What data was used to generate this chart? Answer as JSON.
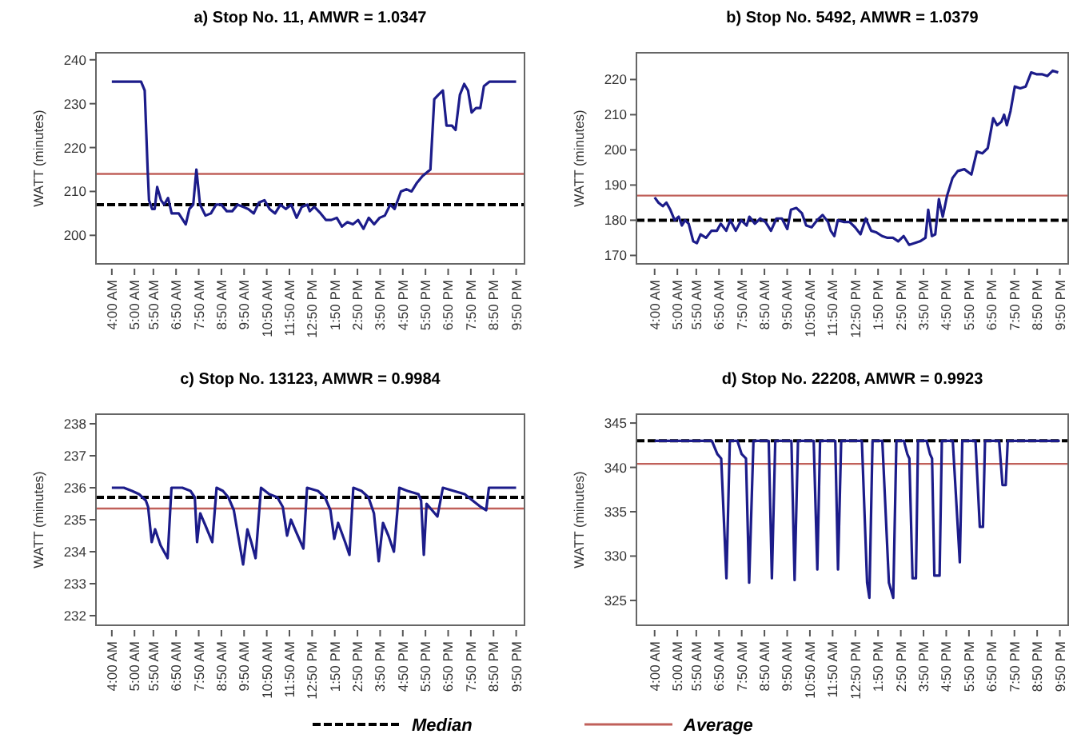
{
  "chart_data": [
    {
      "type": "line",
      "title": "a) Stop No. 11, AMWR = 1.0347",
      "ylabel": "WATT (minutes)",
      "xlim": [
        3.3,
        22.2
      ],
      "xticks": [
        {
          "value": 4,
          "label": "4:00 AM"
        },
        {
          "value": 5,
          "label": "5:00 AM"
        },
        {
          "value": 5.833,
          "label": "5:50 AM"
        },
        {
          "value": 6.833,
          "label": "6:50 AM"
        },
        {
          "value": 7.833,
          "label": "7:50 AM"
        },
        {
          "value": 8.833,
          "label": "8:50 AM"
        },
        {
          "value": 9.833,
          "label": "9:50 AM"
        },
        {
          "value": 10.833,
          "label": "10:50 AM"
        },
        {
          "value": 11.833,
          "label": "11:50 AM"
        },
        {
          "value": 12.833,
          "label": "12:50 PM"
        },
        {
          "value": 13.833,
          "label": "1:50 PM"
        },
        {
          "value": 14.833,
          "label": "2:50 PM"
        },
        {
          "value": 15.833,
          "label": "3:50 PM"
        },
        {
          "value": 16.833,
          "label": "4:50 PM"
        },
        {
          "value": 17.833,
          "label": "5:50 PM"
        },
        {
          "value": 18.833,
          "label": "6:50 PM"
        },
        {
          "value": 19.833,
          "label": "7:50 PM"
        },
        {
          "value": 20.833,
          "label": "8:50 PM"
        },
        {
          "value": 21.833,
          "label": "9:50 PM"
        }
      ],
      "ylim": [
        193.5,
        241.6
      ],
      "yticks": [
        200,
        210,
        220,
        230,
        240
      ],
      "series": [
        {
          "color": "#1c1c8a",
          "x": [
            4,
            4.87,
            5.29,
            5.45,
            5.58,
            5.64,
            5.78,
            5.89,
            6.0,
            6.17,
            6.31,
            6.48,
            6.64,
            6.95,
            7.26,
            7.42,
            7.59,
            7.73,
            7.89,
            8.13,
            8.37,
            8.6,
            8.83,
            9.07,
            9.31,
            9.55,
            9.78,
            10.02,
            10.26,
            10.49,
            10.73,
            10.96,
            11.2,
            11.44,
            11.67,
            11.91,
            12.15,
            12.38,
            12.62,
            12.73,
            12.93,
            13.21,
            13.44,
            13.68,
            13.92,
            14.15,
            14.39,
            14.63,
            14.86,
            15.1,
            15.33,
            15.57,
            15.81,
            16.04,
            16.28,
            16.47,
            16.75,
            16.99,
            17.22,
            17.46,
            17.7,
            18.05,
            18.22,
            18.4,
            18.6,
            18.76,
            19.0,
            19.16,
            19.35,
            19.54,
            19.71,
            19.87,
            20.06,
            20.25,
            20.41,
            20.65,
            21.83
          ],
          "values": [
            235,
            235,
            235,
            233,
            215,
            208,
            206,
            206,
            211,
            208,
            207,
            208.5,
            205,
            205,
            202.5,
            206,
            207,
            215,
            207,
            204.5,
            205,
            207,
            207,
            205.5,
            205.5,
            207,
            206.5,
            206,
            205,
            207.5,
            208,
            206,
            205,
            207,
            206,
            207,
            204,
            206.5,
            207,
            205.5,
            206.5,
            205,
            203.5,
            203.5,
            204,
            202,
            203,
            202.5,
            203.5,
            201.5,
            204,
            202.5,
            204,
            204.5,
            207,
            206,
            210,
            210.5,
            210,
            212,
            213.5,
            215,
            231,
            232,
            233,
            225,
            225,
            224,
            232,
            234.5,
            233,
            228,
            229,
            229,
            234,
            235,
            235
          ]
        }
      ],
      "ref_lines": [
        {
          "axis": "y",
          "value": 207,
          "color": "#000000",
          "line_style": "dashed"
        },
        {
          "axis": "y",
          "value": 214,
          "color": "#c0605a",
          "line_style": "solid"
        }
      ]
    },
    {
      "type": "line",
      "title": "b) Stop No. 5492, AMWR = 1.0379",
      "ylabel": "WATT (minutes)",
      "xlim": [
        3.2,
        22.2
      ],
      "xticks": [
        {
          "value": 4,
          "label": "4:00 AM"
        },
        {
          "value": 5,
          "label": "5:00 AM"
        },
        {
          "value": 5.833,
          "label": "5:50 AM"
        },
        {
          "value": 6.833,
          "label": "6:50 AM"
        },
        {
          "value": 7.833,
          "label": "7:50 AM"
        },
        {
          "value": 8.833,
          "label": "8:50 AM"
        },
        {
          "value": 9.833,
          "label": "9:50 AM"
        },
        {
          "value": 10.833,
          "label": "10:50 AM"
        },
        {
          "value": 11.833,
          "label": "11:50 AM"
        },
        {
          "value": 12.833,
          "label": "12:50 PM"
        },
        {
          "value": 13.833,
          "label": "1:50 PM"
        },
        {
          "value": 14.833,
          "label": "2:50 PM"
        },
        {
          "value": 15.833,
          "label": "3:50 PM"
        },
        {
          "value": 16.833,
          "label": "4:50 PM"
        },
        {
          "value": 17.833,
          "label": "5:50 PM"
        },
        {
          "value": 18.833,
          "label": "6:50 PM"
        },
        {
          "value": 19.833,
          "label": "7:50 PM"
        },
        {
          "value": 20.833,
          "label": "8:50 PM"
        },
        {
          "value": 21.833,
          "label": "9:50 PM"
        }
      ],
      "ylim": [
        167.6,
        227.6
      ],
      "yticks": [
        170,
        180,
        190,
        200,
        210,
        220
      ],
      "series": [
        {
          "color": "#1c1c8a",
          "x": [
            4,
            4.17,
            4.36,
            4.52,
            4.69,
            4.88,
            5.06,
            5.2,
            5.34,
            5.5,
            5.7,
            5.86,
            6.02,
            6.26,
            6.5,
            6.74,
            6.91,
            7.15,
            7.33,
            7.57,
            7.81,
            8.05,
            8.17,
            8.41,
            8.65,
            8.88,
            9.12,
            9.36,
            9.6,
            9.84,
            10.0,
            10.24,
            10.48,
            10.67,
            10.91,
            11.15,
            11.39,
            11.63,
            11.75,
            11.91,
            12.06,
            12.34,
            12.58,
            12.82,
            13.06,
            13.29,
            13.53,
            13.77,
            14.01,
            14.25,
            14.49,
            14.72,
            14.96,
            15.2,
            15.44,
            15.68,
            15.92,
            16.04,
            16.2,
            16.35,
            16.51,
            16.68,
            16.87,
            17.11,
            17.34,
            17.63,
            17.94,
            18.18,
            18.42,
            18.66,
            18.9,
            19.07,
            19.26,
            19.38,
            19.5,
            19.66,
            19.85,
            20.09,
            20.33,
            20.57,
            20.8,
            21.04,
            21.28,
            21.52,
            21.76
          ],
          "values": [
            186.5,
            185,
            184,
            185,
            183,
            180,
            181,
            178.5,
            180,
            179,
            174,
            173.5,
            176,
            175,
            177,
            177,
            179,
            177,
            180,
            177,
            180,
            178.5,
            181,
            179,
            180.5,
            179.5,
            177,
            180.5,
            180.5,
            177.5,
            183,
            183.5,
            182,
            178.5,
            178,
            180,
            181.5,
            179.5,
            177,
            175.5,
            180,
            179.5,
            179.5,
            178,
            176,
            180.5,
            177,
            176.5,
            175.5,
            175,
            175,
            174,
            175.5,
            173,
            173.5,
            174,
            175,
            183,
            175.5,
            176,
            186,
            181,
            187,
            192,
            194,
            194.5,
            193,
            199.5,
            199,
            200.5,
            209,
            207,
            208,
            210,
            207,
            211,
            218,
            217.5,
            218,
            222,
            221.5,
            221.5,
            221,
            222.5,
            222
          ]
        }
      ],
      "ref_lines": [
        {
          "axis": "y",
          "value": 180,
          "color": "#000000",
          "line_style": "dashed"
        },
        {
          "axis": "y",
          "value": 187,
          "color": "#c0605a",
          "line_style": "solid"
        }
      ]
    },
    {
      "type": "line",
      "title": "c) Stop No. 13123, AMWR = 0.9984",
      "ylabel": "WATT (minutes)",
      "xlim": [
        3.3,
        22.2
      ],
      "xticks": [
        {
          "value": 4,
          "label": "4:00 AM"
        },
        {
          "value": 5,
          "label": "5:00 AM"
        },
        {
          "value": 5.833,
          "label": "5:50 AM"
        },
        {
          "value": 6.833,
          "label": "6:50 AM"
        },
        {
          "value": 7.833,
          "label": "7:50 AM"
        },
        {
          "value": 8.833,
          "label": "8:50 AM"
        },
        {
          "value": 9.833,
          "label": "9:50 AM"
        },
        {
          "value": 10.833,
          "label": "10:50 AM"
        },
        {
          "value": 11.833,
          "label": "11:50 AM"
        },
        {
          "value": 12.833,
          "label": "12:50 PM"
        },
        {
          "value": 13.833,
          "label": "1:50 PM"
        },
        {
          "value": 14.833,
          "label": "2:50 PM"
        },
        {
          "value": 15.833,
          "label": "3:50 PM"
        },
        {
          "value": 16.833,
          "label": "4:50 PM"
        },
        {
          "value": 17.833,
          "label": "5:50 PM"
        },
        {
          "value": 18.833,
          "label": "6:50 PM"
        },
        {
          "value": 19.833,
          "label": "7:50 PM"
        },
        {
          "value": 20.833,
          "label": "8:50 PM"
        },
        {
          "value": 21.833,
          "label": "9:50 PM"
        }
      ],
      "ylim": [
        231.7,
        238.3
      ],
      "yticks": [
        232,
        233,
        234,
        235,
        236,
        237,
        238
      ],
      "series": [
        {
          "color": "#1c1c8a",
          "x": [
            4,
            4.53,
            4.89,
            5.2,
            5.5,
            5.6,
            5.76,
            5.91,
            6.15,
            6.46,
            6.63,
            7.11,
            7.47,
            7.66,
            7.76,
            7.9,
            8.14,
            8.43,
            8.62,
            8.9,
            9.14,
            9.38,
            9.57,
            9.79,
            9.98,
            10.15,
            10.34,
            10.58,
            10.94,
            11.3,
            11.54,
            11.73,
            11.9,
            12.14,
            12.45,
            12.61,
            13.09,
            13.4,
            13.64,
            13.81,
            13.98,
            14.29,
            14.48,
            14.65,
            15.01,
            15.32,
            15.56,
            15.77,
            15.96,
            16.2,
            16.44,
            16.68,
            17.04,
            17.52,
            17.64,
            17.76,
            17.88,
            18.12,
            18.36,
            18.6,
            19.08,
            19.56,
            19.91,
            20.27,
            20.51,
            20.63,
            21.83
          ],
          "values": [
            236,
            236,
            235.9,
            235.8,
            235.6,
            235.4,
            234.3,
            234.7,
            234.2,
            233.8,
            236,
            236,
            235.9,
            235.7,
            234.3,
            235.2,
            234.8,
            234.3,
            236,
            235.9,
            235.7,
            235.3,
            234.5,
            233.6,
            234.7,
            234.3,
            233.8,
            236,
            235.8,
            235.7,
            235.4,
            234.5,
            235,
            234.6,
            234.1,
            236,
            235.9,
            235.7,
            235.3,
            234.4,
            234.9,
            234.3,
            233.9,
            236,
            235.9,
            235.7,
            235.2,
            233.7,
            234.9,
            234.5,
            234,
            236,
            235.9,
            235.8,
            235.6,
            233.9,
            235.5,
            235.3,
            235.1,
            236,
            235.9,
            235.8,
            235.6,
            235.4,
            235.3,
            236,
            236
          ]
        }
      ],
      "ref_lines": [
        {
          "axis": "y",
          "value": 235.7,
          "color": "#000000",
          "line_style": "dashed",
          "label": "Median"
        },
        {
          "axis": "y",
          "value": 235.35,
          "color": "#c0605a",
          "line_style": "solid",
          "label": "Average"
        }
      ],
      "legend": "bottom"
    },
    {
      "type": "line",
      "title": "d) Stop No. 22208, AMWR = 0.9923",
      "ylabel": "WATT (minutes)",
      "xlim": [
        3.2,
        22.2
      ],
      "xticks": [
        {
          "value": 4,
          "label": "4:00 AM"
        },
        {
          "value": 5,
          "label": "5:00 AM"
        },
        {
          "value": 5.833,
          "label": "5:50 AM"
        },
        {
          "value": 6.833,
          "label": "6:50 AM"
        },
        {
          "value": 7.833,
          "label": "7:50 AM"
        },
        {
          "value": 8.833,
          "label": "8:50 AM"
        },
        {
          "value": 9.833,
          "label": "9:50 AM"
        },
        {
          "value": 10.833,
          "label": "10:50 AM"
        },
        {
          "value": 11.833,
          "label": "11:50 AM"
        },
        {
          "value": 12.833,
          "label": "12:50 PM"
        },
        {
          "value": 13.833,
          "label": "1:50 PM"
        },
        {
          "value": 14.833,
          "label": "2:50 PM"
        },
        {
          "value": 15.833,
          "label": "3:50 PM"
        },
        {
          "value": 16.833,
          "label": "4:50 PM"
        },
        {
          "value": 17.833,
          "label": "5:50 PM"
        },
        {
          "value": 18.833,
          "label": "6:50 PM"
        },
        {
          "value": 19.833,
          "label": "7:50 PM"
        },
        {
          "value": 20.833,
          "label": "8:50 PM"
        },
        {
          "value": 21.833,
          "label": "9:50 PM"
        }
      ],
      "ylim": [
        322.2,
        346
      ],
      "yticks": [
        325,
        330,
        335,
        340,
        345
      ],
      "series": [
        {
          "color": "#1c1c8a",
          "x": [
            4,
            6.52,
            6.76,
            6.93,
            7.16,
            7.31,
            7.64,
            7.83,
            8.02,
            8.16,
            8.35,
            9.02,
            9.16,
            9.31,
            10.02,
            10.16,
            10.31,
            11.0,
            11.16,
            11.28,
            11.95,
            12.07,
            12.21,
            13.12,
            13.35,
            13.45,
            13.59,
            14.02,
            14.31,
            14.5,
            14.64,
            14.97,
            15.12,
            15.21,
            15.35,
            15.5,
            15.59,
            15.97,
            16.12,
            16.21,
            16.31,
            16.54,
            16.64,
            17.12,
            17.43,
            17.54,
            18.12,
            18.31,
            18.45,
            18.54,
            19.16,
            19.31,
            19.45,
            19.54,
            21.83
          ],
          "values": [
            343,
            343,
            341.5,
            341,
            327.5,
            343,
            343,
            341.5,
            341,
            327,
            343,
            343,
            327.5,
            343,
            343,
            327.3,
            343,
            343,
            328.5,
            343,
            343,
            328.5,
            343,
            343,
            327,
            325.3,
            343,
            343,
            327,
            325.3,
            343,
            343,
            341.5,
            341,
            327.5,
            327.5,
            343,
            343,
            341.5,
            341,
            327.8,
            327.8,
            343,
            343,
            329.3,
            343,
            343,
            333.3,
            333.3,
            343,
            343,
            338,
            338,
            343,
            343
          ]
        }
      ],
      "ref_lines": [
        {
          "axis": "y",
          "value": 343,
          "color": "#000000",
          "line_style": "dashed"
        },
        {
          "axis": "y",
          "value": 340.4,
          "color": "#c0605a",
          "line_style": "solid"
        }
      ]
    }
  ]
}
